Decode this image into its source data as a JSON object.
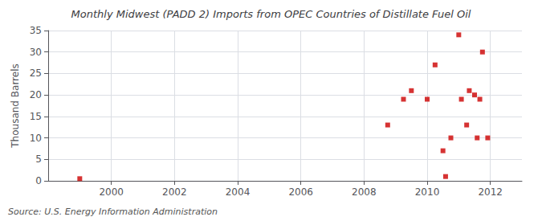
{
  "chart_data": {
    "type": "scatter",
    "title": "Monthly Midwest (PADD 2) Imports from OPEC Countries of Distillate Fuel Oil",
    "ylabel": "Thousand Barrels",
    "annotation": "Source: U.S. Energy Information Administration",
    "x": [
      1999.0,
      2008.75,
      2009.25,
      2009.5,
      2010.0,
      2010.25,
      2010.5,
      2010.583,
      2010.75,
      2011.0,
      2011.083,
      2011.25,
      2011.333,
      2011.5,
      2011.583,
      2011.667,
      2011.75,
      2011.917
    ],
    "values": [
      0.5,
      13,
      19,
      21,
      19,
      27,
      7,
      1,
      10,
      34,
      19,
      13,
      21,
      20,
      10,
      19,
      30,
      10
    ],
    "color": "#cc0000",
    "marker": "square",
    "xlim": [
      1998.0,
      2013.0
    ],
    "ylim": [
      0,
      35
    ],
    "xticks": [
      2000,
      2002,
      2004,
      2006,
      2008,
      2010,
      2012
    ],
    "yticks": [
      0,
      5,
      10,
      15,
      20,
      25,
      30,
      35
    ],
    "grid": true
  }
}
